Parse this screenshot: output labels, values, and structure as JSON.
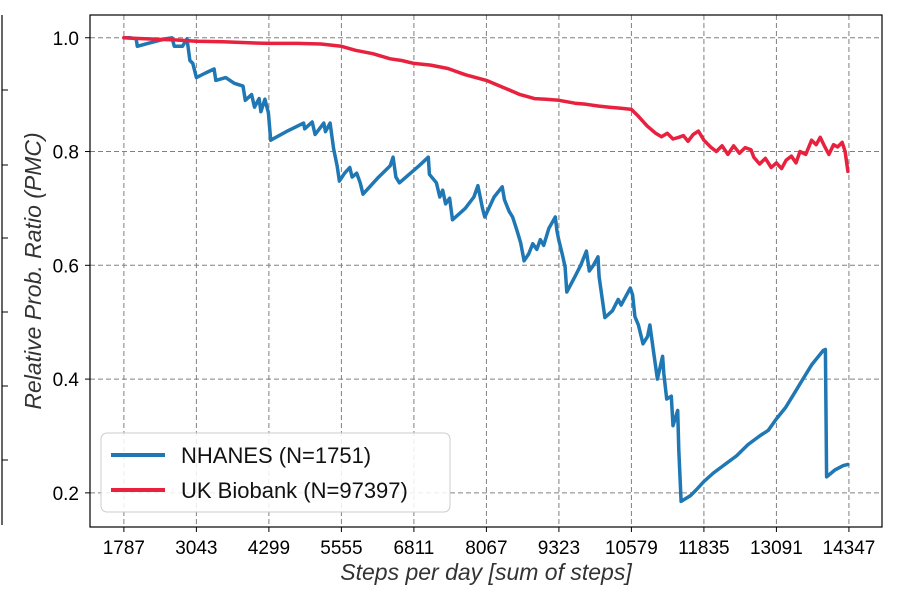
{
  "chart_data": {
    "type": "line",
    "title": "",
    "xlabel": "Steps per day [sum of steps]",
    "ylabel": "Relative Prob. Ratio (PMC)",
    "xlim": [
      1200,
      14920
    ],
    "ylim": [
      0.14,
      1.04
    ],
    "xticks": [
      1787,
      3043,
      4299,
      5555,
      6811,
      8067,
      9323,
      10579,
      11835,
      13091,
      14347
    ],
    "yticks": [
      0.2,
      0.4,
      0.6,
      0.8,
      1.0
    ],
    "ytick_labels": [
      "0.2",
      "0.4",
      "0.6",
      "0.8",
      "1.0"
    ],
    "grid": true,
    "legend_position": "lower-left",
    "series": [
      {
        "name": "NHANES (N=1751)",
        "color": "#1f77b4",
        "points": [
          [
            1787,
            1.0
          ],
          [
            1900,
            1.0
          ],
          [
            2000,
            0.998
          ],
          [
            2020,
            0.985
          ],
          [
            2200,
            0.99
          ],
          [
            2500,
            0.998
          ],
          [
            2620,
            1.0
          ],
          [
            2660,
            0.985
          ],
          [
            2800,
            0.985
          ],
          [
            2880,
            0.998
          ],
          [
            2930,
            0.96
          ],
          [
            2980,
            0.955
          ],
          [
            3043,
            0.93
          ],
          [
            3200,
            0.938
          ],
          [
            3350,
            0.945
          ],
          [
            3380,
            0.925
          ],
          [
            3550,
            0.93
          ],
          [
            3700,
            0.92
          ],
          [
            3850,
            0.915
          ],
          [
            3890,
            0.89
          ],
          [
            4000,
            0.9
          ],
          [
            4050,
            0.878
          ],
          [
            4130,
            0.893
          ],
          [
            4160,
            0.87
          ],
          [
            4230,
            0.892
          ],
          [
            4290,
            0.868
          ],
          [
            4330,
            0.82
          ],
          [
            4600,
            0.835
          ],
          [
            4900,
            0.85
          ],
          [
            4920,
            0.84
          ],
          [
            5050,
            0.852
          ],
          [
            5100,
            0.83
          ],
          [
            5250,
            0.85
          ],
          [
            5280,
            0.835
          ],
          [
            5360,
            0.85
          ],
          [
            5420,
            0.805
          ],
          [
            5480,
            0.775
          ],
          [
            5520,
            0.748
          ],
          [
            5610,
            0.762
          ],
          [
            5700,
            0.772
          ],
          [
            5740,
            0.755
          ],
          [
            5820,
            0.762
          ],
          [
            5880,
            0.745
          ],
          [
            5930,
            0.725
          ],
          [
            6200,
            0.755
          ],
          [
            6400,
            0.775
          ],
          [
            6450,
            0.79
          ],
          [
            6500,
            0.755
          ],
          [
            6560,
            0.745
          ],
          [
            6900,
            0.775
          ],
          [
            7060,
            0.79
          ],
          [
            7080,
            0.76
          ],
          [
            7200,
            0.745
          ],
          [
            7260,
            0.72
          ],
          [
            7310,
            0.732
          ],
          [
            7360,
            0.708
          ],
          [
            7430,
            0.718
          ],
          [
            7480,
            0.68
          ],
          [
            7700,
            0.7
          ],
          [
            7850,
            0.72
          ],
          [
            7920,
            0.74
          ],
          [
            7960,
            0.72
          ],
          [
            8000,
            0.7
          ],
          [
            8040,
            0.685
          ],
          [
            8200,
            0.72
          ],
          [
            8340,
            0.738
          ],
          [
            8380,
            0.715
          ],
          [
            8460,
            0.695
          ],
          [
            8520,
            0.685
          ],
          [
            8600,
            0.66
          ],
          [
            8660,
            0.64
          ],
          [
            8720,
            0.608
          ],
          [
            8800,
            0.62
          ],
          [
            8870,
            0.638
          ],
          [
            8940,
            0.628
          ],
          [
            9000,
            0.645
          ],
          [
            9060,
            0.635
          ],
          [
            9150,
            0.665
          ],
          [
            9260,
            0.685
          ],
          [
            9290,
            0.66
          ],
          [
            9320,
            0.645
          ],
          [
            9380,
            0.62
          ],
          [
            9430,
            0.597
          ],
          [
            9460,
            0.553
          ],
          [
            9600,
            0.58
          ],
          [
            9700,
            0.6
          ],
          [
            9800,
            0.625
          ],
          [
            9850,
            0.59
          ],
          [
            9920,
            0.6
          ],
          [
            10000,
            0.615
          ],
          [
            10020,
            0.58
          ],
          [
            10120,
            0.508
          ],
          [
            10250,
            0.52
          ],
          [
            10350,
            0.54
          ],
          [
            10400,
            0.53
          ],
          [
            10560,
            0.56
          ],
          [
            10600,
            0.548
          ],
          [
            10640,
            0.51
          ],
          [
            10700,
            0.495
          ],
          [
            10780,
            0.462
          ],
          [
            10860,
            0.475
          ],
          [
            10900,
            0.495
          ],
          [
            10960,
            0.45
          ],
          [
            11030,
            0.4
          ],
          [
            11120,
            0.44
          ],
          [
            11140,
            0.41
          ],
          [
            11190,
            0.365
          ],
          [
            11270,
            0.37
          ],
          [
            11300,
            0.318
          ],
          [
            11380,
            0.345
          ],
          [
            11400,
            0.275
          ],
          [
            11440,
            0.185
          ],
          [
            11600,
            0.195
          ],
          [
            11700,
            0.205
          ],
          [
            11835,
            0.22
          ],
          [
            12000,
            0.235
          ],
          [
            12200,
            0.25
          ],
          [
            12400,
            0.265
          ],
          [
            12600,
            0.285
          ],
          [
            12800,
            0.3
          ],
          [
            12950,
            0.31
          ],
          [
            13091,
            0.33
          ],
          [
            13250,
            0.35
          ],
          [
            13400,
            0.375
          ],
          [
            13550,
            0.4
          ],
          [
            13700,
            0.425
          ],
          [
            13820,
            0.44
          ],
          [
            13900,
            0.45
          ],
          [
            13940,
            0.452
          ],
          [
            13960,
            0.228
          ],
          [
            14100,
            0.24
          ],
          [
            14250,
            0.248
          ],
          [
            14330,
            0.25
          ]
        ]
      },
      {
        "name": "UK Biobank (N=97397)",
        "color": "#e8213e",
        "points": [
          [
            1787,
            1.0
          ],
          [
            2200,
            0.998
          ],
          [
            2700,
            0.996
          ],
          [
            3043,
            0.994
          ],
          [
            3500,
            0.993
          ],
          [
            4000,
            0.991
          ],
          [
            4299,
            0.99
          ],
          [
            4800,
            0.99
          ],
          [
            5200,
            0.989
          ],
          [
            5555,
            0.985
          ],
          [
            5800,
            0.978
          ],
          [
            6100,
            0.972
          ],
          [
            6400,
            0.963
          ],
          [
            6600,
            0.96
          ],
          [
            6811,
            0.955
          ],
          [
            7100,
            0.952
          ],
          [
            7400,
            0.946
          ],
          [
            7700,
            0.935
          ],
          [
            8067,
            0.925
          ],
          [
            8350,
            0.913
          ],
          [
            8650,
            0.9
          ],
          [
            8900,
            0.893
          ],
          [
            9100,
            0.892
          ],
          [
            9323,
            0.89
          ],
          [
            9600,
            0.885
          ],
          [
            9800,
            0.883
          ],
          [
            10000,
            0.88
          ],
          [
            10200,
            0.878
          ],
          [
            10400,
            0.876
          ],
          [
            10579,
            0.874
          ],
          [
            10700,
            0.862
          ],
          [
            10850,
            0.845
          ],
          [
            11000,
            0.832
          ],
          [
            11100,
            0.826
          ],
          [
            11200,
            0.832
          ],
          [
            11300,
            0.822
          ],
          [
            11400,
            0.825
          ],
          [
            11480,
            0.828
          ],
          [
            11560,
            0.818
          ],
          [
            11650,
            0.83
          ],
          [
            11740,
            0.836
          ],
          [
            11835,
            0.82
          ],
          [
            11950,
            0.808
          ],
          [
            12050,
            0.8
          ],
          [
            12150,
            0.81
          ],
          [
            12250,
            0.795
          ],
          [
            12350,
            0.81
          ],
          [
            12450,
            0.797
          ],
          [
            12550,
            0.807
          ],
          [
            12650,
            0.803
          ],
          [
            12700,
            0.79
          ],
          [
            12800,
            0.778
          ],
          [
            12900,
            0.788
          ],
          [
            13000,
            0.772
          ],
          [
            13091,
            0.78
          ],
          [
            13180,
            0.77
          ],
          [
            13260,
            0.785
          ],
          [
            13350,
            0.792
          ],
          [
            13430,
            0.78
          ],
          [
            13500,
            0.8
          ],
          [
            13600,
            0.795
          ],
          [
            13700,
            0.82
          ],
          [
            13780,
            0.812
          ],
          [
            13850,
            0.825
          ],
          [
            13920,
            0.81
          ],
          [
            14000,
            0.795
          ],
          [
            14080,
            0.812
          ],
          [
            14150,
            0.808
          ],
          [
            14230,
            0.816
          ],
          [
            14280,
            0.8
          ],
          [
            14330,
            0.765
          ]
        ]
      }
    ]
  }
}
